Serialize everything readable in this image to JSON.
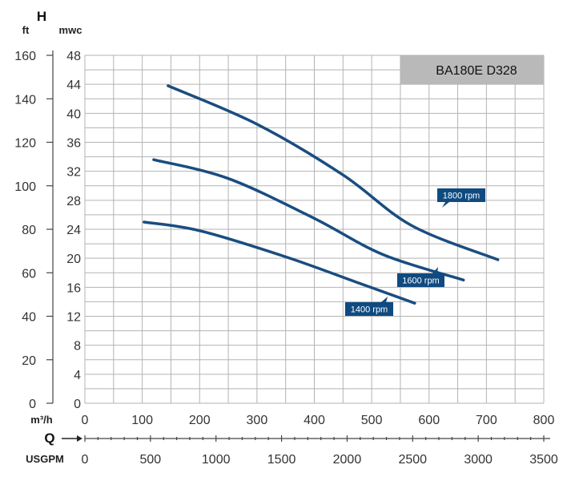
{
  "chart_data": {
    "type": "line",
    "title": "BA180E D328",
    "x_axis": {
      "label": "Q",
      "unit_primary": "m³/h",
      "ticks_primary": [
        0,
        100,
        200,
        300,
        400,
        500,
        600,
        700,
        800
      ],
      "range_primary": [
        0,
        800
      ],
      "unit_secondary": "USGPM",
      "ticks_secondary": [
        0,
        500,
        1000,
        1500,
        2000,
        2500,
        3000,
        3500
      ],
      "range_secondary": [
        0,
        3500
      ]
    },
    "y_axis": {
      "label": "H",
      "unit_primary": "mwc",
      "ticks_primary": [
        0,
        4,
        8,
        12,
        16,
        20,
        24,
        28,
        32,
        36,
        40,
        44,
        48
      ],
      "range_primary": [
        0,
        48
      ],
      "unit_secondary": "ft",
      "ticks_secondary": [
        0,
        20,
        40,
        60,
        80,
        100,
        120,
        140,
        160
      ],
      "range_secondary": [
        0,
        160
      ]
    },
    "grid": true,
    "series": [
      {
        "name": "1800 rpm",
        "color": "#1a4d80",
        "points": [
          [
            145,
            43.8
          ],
          [
            300,
            38.5
          ],
          [
            450,
            31.5
          ],
          [
            570,
            24.5
          ],
          [
            720,
            19.8
          ]
        ]
      },
      {
        "name": "1600 rpm",
        "color": "#1a4d80",
        "points": [
          [
            120,
            33.6
          ],
          [
            250,
            31.0
          ],
          [
            400,
            25.5
          ],
          [
            520,
            20.5
          ],
          [
            660,
            17.0
          ]
        ]
      },
      {
        "name": "1400 rpm",
        "color": "#1a4d80",
        "points": [
          [
            103,
            25.0
          ],
          [
            200,
            23.8
          ],
          [
            350,
            20.2
          ],
          [
            470,
            16.8
          ],
          [
            575,
            13.8
          ]
        ]
      }
    ]
  }
}
